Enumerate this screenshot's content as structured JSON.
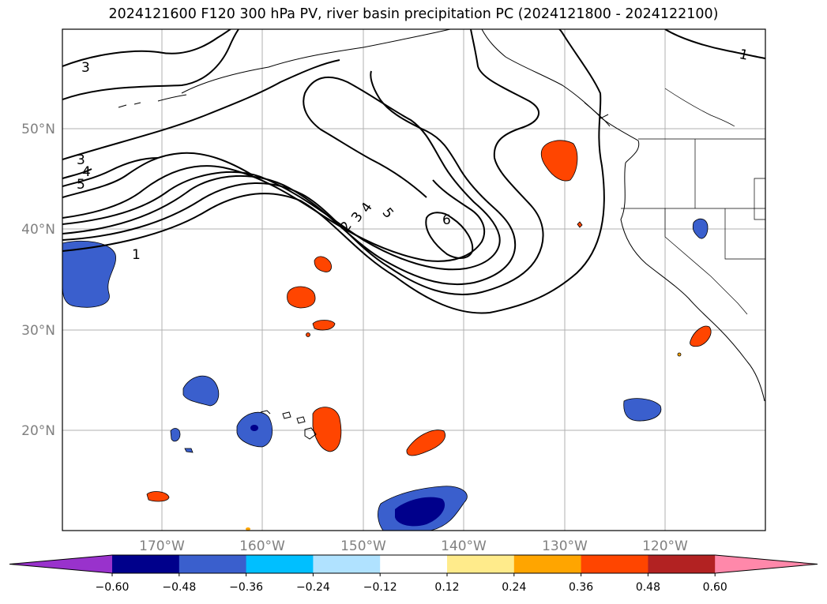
{
  "title": "2024121600 F120 300 hPa PV, river basin precipitation PC (2024121800 - 2024122100)",
  "map": {
    "lat_labels": [
      "50°N",
      "40°N",
      "30°N",
      "20°N"
    ],
    "lon_labels": [
      "170°W",
      "160°W",
      "150°W",
      "140°W",
      "130°W",
      "120°W"
    ],
    "gridlines": true,
    "label_color": "#808080"
  },
  "pv_contour_labels": [
    "3",
    "1",
    "3",
    "4",
    "5",
    "1",
    "2",
    "3",
    "4",
    "5",
    "6"
  ],
  "colorbar": {
    "extend": "both",
    "tick_labels": [
      "−0.60",
      "−0.48",
      "−0.36",
      "−0.24",
      "−0.12",
      "0.12",
      "0.24",
      "0.36",
      "0.48",
      "0.60"
    ],
    "colors": [
      "#9932cc",
      "#00008b",
      "#3a5fcd",
      "#00bfff",
      "#b0e2ff",
      "#ffffff",
      "#ffeb8b",
      "#ffa500",
      "#ff4500",
      "#b22222",
      "#ff88aa"
    ]
  }
}
